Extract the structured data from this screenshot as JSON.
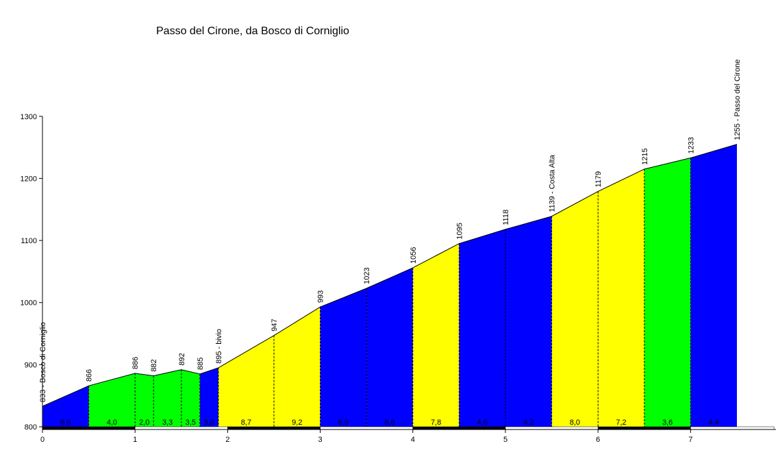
{
  "chart_data": {
    "type": "area",
    "title": "Passo del Cirone, da Bosco di Corniglio",
    "xlabel": "",
    "ylabel": "",
    "xlim": [
      0,
      7.9
    ],
    "ylim": [
      800,
      1300
    ],
    "x_ticks": [
      "0",
      "1",
      "2",
      "3",
      "4",
      "5",
      "6",
      "7"
    ],
    "y_ticks": [
      "800",
      "900",
      "1000",
      "1100",
      "1200",
      "1300"
    ],
    "points": [
      {
        "x": 0,
        "elev": 833,
        "label": "833 - Bosco di Corniglio"
      },
      {
        "x": 0.5,
        "elev": 866,
        "label": "866"
      },
      {
        "x": 1.0,
        "elev": 886,
        "label": "886"
      },
      {
        "x": 1.2,
        "elev": 882,
        "label": "882"
      },
      {
        "x": 1.5,
        "elev": 892,
        "label": "892"
      },
      {
        "x": 1.7,
        "elev": 885,
        "label": "885"
      },
      {
        "x": 1.9,
        "elev": 895,
        "label": "895 - bivio"
      },
      {
        "x": 2.5,
        "elev": 947,
        "label": "947"
      },
      {
        "x": 3.0,
        "elev": 993,
        "label": "993"
      },
      {
        "x": 3.5,
        "elev": 1023,
        "label": "1023"
      },
      {
        "x": 4.0,
        "elev": 1056,
        "label": "1056"
      },
      {
        "x": 4.5,
        "elev": 1095,
        "label": "1095"
      },
      {
        "x": 5.0,
        "elev": 1118,
        "label": "1118"
      },
      {
        "x": 5.5,
        "elev": 1139,
        "label": "1139 - Costa Alta"
      },
      {
        "x": 6.0,
        "elev": 1179,
        "label": "1179"
      },
      {
        "x": 6.5,
        "elev": 1215,
        "label": "1215"
      },
      {
        "x": 7.0,
        "elev": 1233,
        "label": "1233"
      },
      {
        "x": 7.5,
        "elev": 1255,
        "label": "1255 - Passo del Cirone"
      }
    ],
    "segments": [
      {
        "x0": 0,
        "x1": 0.5,
        "gradient": "6,6",
        "color": "#0000ff"
      },
      {
        "x0": 0.5,
        "x1": 1.0,
        "gradient": "4,0",
        "color": "#00ff00"
      },
      {
        "x0": 1.0,
        "x1": 1.2,
        "gradient": "2,0",
        "color": "#00ff00"
      },
      {
        "x0": 1.2,
        "x1": 1.5,
        "gradient": "3,3",
        "color": "#00ff00"
      },
      {
        "x0": 1.5,
        "x1": 1.7,
        "gradient": "3,5",
        "color": "#00ff00"
      },
      {
        "x0": 1.7,
        "x1": 1.9,
        "gradient": "5,0",
        "color": "#0000ff"
      },
      {
        "x0": 1.9,
        "x1": 2.5,
        "gradient": "8,7",
        "color": "#ffff00"
      },
      {
        "x0": 2.5,
        "x1": 3.0,
        "gradient": "9,2",
        "color": "#ffff00"
      },
      {
        "x0": 3.0,
        "x1": 3.5,
        "gradient": "6,0",
        "color": "#0000ff"
      },
      {
        "x0": 3.5,
        "x1": 4.0,
        "gradient": "6,6",
        "color": "#0000ff"
      },
      {
        "x0": 4.0,
        "x1": 4.5,
        "gradient": "7,8",
        "color": "#ffff00"
      },
      {
        "x0": 4.5,
        "x1": 5.0,
        "gradient": "4,6",
        "color": "#0000ff"
      },
      {
        "x0": 5.0,
        "x1": 5.5,
        "gradient": "4,2",
        "color": "#0000ff"
      },
      {
        "x0": 5.5,
        "x1": 6.0,
        "gradient": "8,0",
        "color": "#ffff00"
      },
      {
        "x0": 6.0,
        "x1": 6.5,
        "gradient": "7,2",
        "color": "#ffff00"
      },
      {
        "x0": 6.5,
        "x1": 7.0,
        "gradient": "3,6",
        "color": "#00ff00"
      },
      {
        "x0": 7.0,
        "x1": 7.5,
        "gradient": "4,4",
        "color": "#0000ff"
      }
    ],
    "grid": false,
    "legend": "none"
  }
}
